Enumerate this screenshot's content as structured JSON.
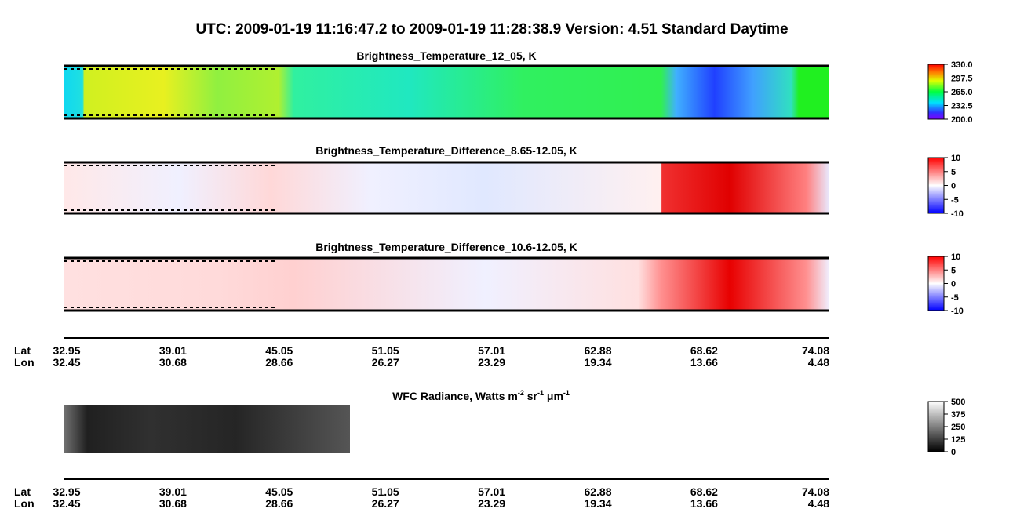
{
  "title": "UTC:  2009-01-19   11:16:47.2  to  2009-01-19   11:28:38.9    Version: 4.51  Standard Daytime",
  "panels": [
    {
      "title": "Brightness_Temperature_12_05, K",
      "colorbar": [
        "330.0",
        "297.5",
        "265.0",
        "232.5",
        "200.0"
      ]
    },
    {
      "title": "Brightness_Temperature_Difference_8.65-12.05, K",
      "colorbar": [
        "10",
        "5",
        "0",
        "-5",
        "-10"
      ]
    },
    {
      "title": "Brightness_Temperature_Difference_10.6-12.05, K",
      "colorbar": [
        "10",
        "5",
        "0",
        "-5",
        "-10"
      ]
    }
  ],
  "axes": [
    {
      "lat_label": "Lat",
      "lon_label": "Lon",
      "lat": [
        "32.95",
        "39.01",
        "45.05",
        "51.05",
        "57.01",
        "62.88",
        "68.62",
        "74.08"
      ],
      "lon": [
        "32.45",
        "30.68",
        "28.66",
        "26.27",
        "23.29",
        "19.34",
        "13.66",
        "4.48"
      ]
    },
    {
      "lat_label": "Lat",
      "lon_label": "Lon",
      "lat": [
        "32.95",
        "39.01",
        "45.05",
        "51.05",
        "57.01",
        "62.88",
        "68.62",
        "74.08"
      ],
      "lon": [
        "32.45",
        "30.68",
        "28.66",
        "26.27",
        "23.29",
        "19.34",
        "13.66",
        "4.48"
      ]
    }
  ],
  "wfc": {
    "title_parts": [
      "WFC Radiance, Watts m",
      "-2",
      " sr",
      "-1",
      " μm",
      "-1"
    ],
    "colorbar": [
      "500",
      "375",
      "250",
      "125",
      "0"
    ]
  }
}
